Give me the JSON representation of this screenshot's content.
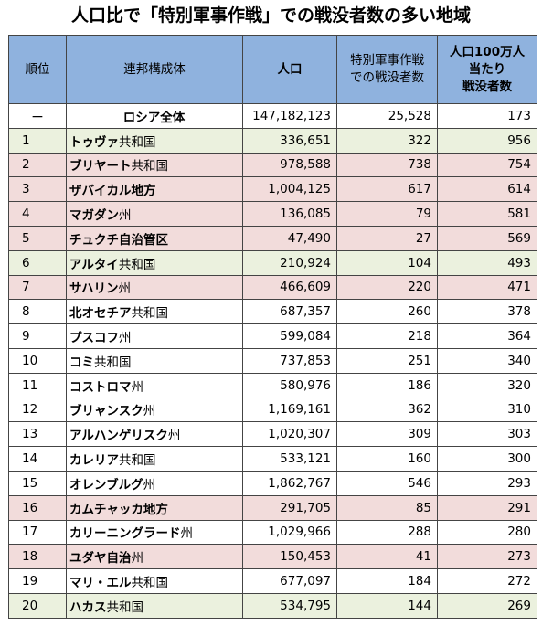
{
  "title": "人口比で「特別軍事作戦」での戦没者数の多い地域",
  "headers": [
    "順位",
    "連邦構成体",
    "人口",
    "特別軍事作戦での戦没者数",
    "人口100万人当たり戦没者数"
  ],
  "header_lines": {
    "h3": [
      "特別軍事作戦",
      "での戦没者数"
    ],
    "h4": [
      "人口100万人",
      "当たり",
      "戦没者数"
    ]
  },
  "rows": [
    {
      "rank": "ー",
      "name": "ロシア全体",
      "suffix": "",
      "pop": "147,182,123",
      "deaths": "25,528",
      "per_million": "173",
      "shade": "white",
      "total": true
    },
    {
      "rank": "1",
      "name": "トゥヴァ",
      "suffix": "共和国",
      "pop": "336,651",
      "deaths": "322",
      "per_million": "956",
      "shade": "green"
    },
    {
      "rank": "2",
      "name": "ブリヤート",
      "suffix": "共和国",
      "pop": "978,588",
      "deaths": "738",
      "per_million": "754",
      "shade": "pink"
    },
    {
      "rank": "3",
      "name": "ザバイカル地方",
      "suffix": "",
      "pop": "1,004,125",
      "deaths": "617",
      "per_million": "614",
      "shade": "pink"
    },
    {
      "rank": "4",
      "name": "マガダン",
      "suffix": "州",
      "pop": "136,085",
      "deaths": "79",
      "per_million": "581",
      "shade": "pink"
    },
    {
      "rank": "5",
      "name": "チュクチ自治管区",
      "suffix": "",
      "pop": "47,490",
      "deaths": "27",
      "per_million": "569",
      "shade": "pink"
    },
    {
      "rank": "6",
      "name": "アルタイ",
      "suffix": "共和国",
      "pop": "210,924",
      "deaths": "104",
      "per_million": "493",
      "shade": "green"
    },
    {
      "rank": "7",
      "name": "サハリン",
      "suffix": "州",
      "pop": "466,609",
      "deaths": "220",
      "per_million": "471",
      "shade": "pink"
    },
    {
      "rank": "8",
      "name": "北オセチア",
      "suffix": "共和国",
      "pop": "687,357",
      "deaths": "260",
      "per_million": "378",
      "shade": "white"
    },
    {
      "rank": "9",
      "name": "プスコフ",
      "suffix": "州",
      "pop": "599,084",
      "deaths": "218",
      "per_million": "364",
      "shade": "white"
    },
    {
      "rank": "10",
      "name": "コミ",
      "suffix": "共和国",
      "pop": "737,853",
      "deaths": "251",
      "per_million": "340",
      "shade": "white"
    },
    {
      "rank": "11",
      "name": "コストロマ",
      "suffix": "州",
      "pop": "580,976",
      "deaths": "186",
      "per_million": "320",
      "shade": "white"
    },
    {
      "rank": "12",
      "name": "ブリャンスク",
      "suffix": "州",
      "pop": "1,169,161",
      "deaths": "362",
      "per_million": "310",
      "shade": "white"
    },
    {
      "rank": "13",
      "name": "アルハンゲリスク",
      "suffix": "州",
      "pop": "1,020,307",
      "deaths": "309",
      "per_million": "303",
      "shade": "white"
    },
    {
      "rank": "14",
      "name": "カレリア",
      "suffix": "共和国",
      "pop": "533,121",
      "deaths": "160",
      "per_million": "300",
      "shade": "white"
    },
    {
      "rank": "15",
      "name": "オレンブルグ",
      "suffix": "州",
      "pop": "1,862,767",
      "deaths": "546",
      "per_million": "293",
      "shade": "white"
    },
    {
      "rank": "16",
      "name": "カムチャッカ地方",
      "suffix": "",
      "pop": "291,705",
      "deaths": "85",
      "per_million": "291",
      "shade": "pink"
    },
    {
      "rank": "17",
      "name": "カリーニングラード",
      "suffix": "州",
      "pop": "1,029,966",
      "deaths": "288",
      "per_million": "280",
      "shade": "white"
    },
    {
      "rank": "18",
      "name": "ユダヤ自治",
      "suffix": "州",
      "pop": "150,453",
      "deaths": "41",
      "per_million": "273",
      "shade": "pink"
    },
    {
      "rank": "19",
      "name": "マリ・エル",
      "suffix": "共和国",
      "pop": "677,097",
      "deaths": "184",
      "per_million": "272",
      "shade": "white"
    },
    {
      "rank": "20",
      "name": "ハカス",
      "suffix": "共和国",
      "pop": "534,795",
      "deaths": "144",
      "per_million": "269",
      "shade": "green"
    }
  ],
  "colors": {
    "header_bg": "#8fb2de",
    "green_row": "#ebf1de",
    "pink_row": "#f2dcdb",
    "border": "#444444"
  }
}
